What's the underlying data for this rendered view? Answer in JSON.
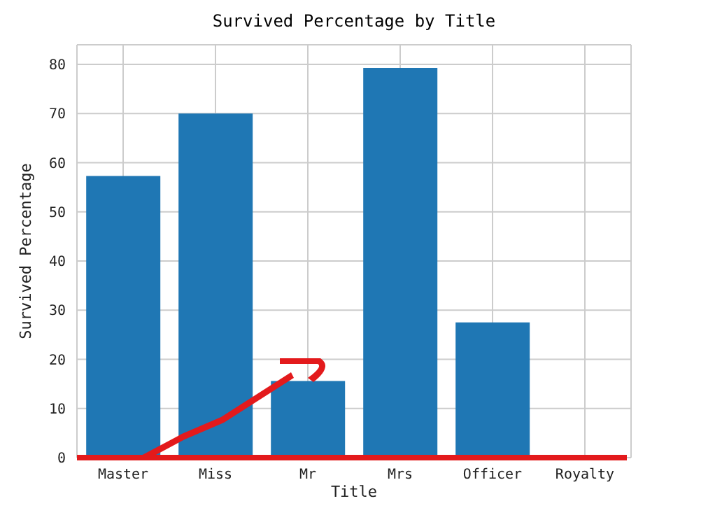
{
  "chart_data": {
    "type": "bar",
    "title": "Survived Percentage by Title",
    "xlabel": "Title",
    "ylabel": "Survived Percentage",
    "categories": [
      "Master",
      "Miss",
      "Mr",
      "Mrs",
      "Officer",
      "Royalty"
    ],
    "values": [
      57.3,
      70.0,
      15.6,
      79.3,
      27.5,
      0
    ],
    "color": "#1f77b4",
    "ylim": [
      0,
      84
    ],
    "yticks": [
      0,
      10,
      20,
      30,
      40,
      50,
      60,
      70,
      80
    ],
    "grid": true
  }
}
